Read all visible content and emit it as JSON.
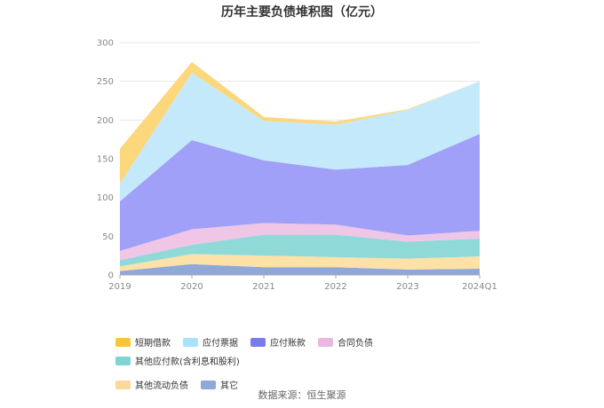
{
  "chart_data": {
    "type": "area",
    "stacked": true,
    "title": "历年主要负债堆积图（亿元）",
    "categories": [
      "2019",
      "2020",
      "2021",
      "2022",
      "2023",
      "2024Q1"
    ],
    "ylim": [
      0,
      300
    ],
    "yticks": [
      "0",
      "50",
      "100",
      "150",
      "200",
      "250",
      "300"
    ],
    "grid": true,
    "legend_position": "bottom",
    "series": [
      {
        "name": "其它",
        "color": "#8fa8d8",
        "values": [
          5,
          14,
          10,
          10,
          7,
          8
        ]
      },
      {
        "name": "其他流动负债",
        "color": "#fde1a6",
        "values": [
          6,
          13,
          15,
          13,
          14,
          16
        ]
      },
      {
        "name": "其他应付款(含利息和股利)",
        "color": "#8fd9d9",
        "values": [
          8,
          12,
          27,
          29,
          22,
          23
        ]
      },
      {
        "name": "合同负债",
        "color": "#efc6e6",
        "values": [
          12,
          20,
          15,
          13,
          8,
          10
        ]
      },
      {
        "name": "应付账款",
        "color": "#a0a0f8",
        "values": [
          64,
          115,
          81,
          71,
          91,
          125
        ]
      },
      {
        "name": "应付票据",
        "color": "#c4e9fb",
        "values": [
          23,
          87,
          51,
          58,
          71,
          68
        ]
      },
      {
        "name": "短期借款",
        "color": "#fdd77c",
        "values": [
          45,
          14,
          5,
          4,
          1,
          0
        ]
      }
    ]
  },
  "legend": {
    "rows": [
      [
        {
          "label": "短期借款",
          "color": "#fcc43c"
        },
        {
          "label": "应付票据",
          "color": "#a9e2fb"
        },
        {
          "label": "应付账款",
          "color": "#7b7bf0"
        },
        {
          "label": "合同负债",
          "color": "#eab7e0"
        },
        {
          "label": "其他应付款(含利息和股利)",
          "color": "#7fd4d4"
        }
      ],
      [
        {
          "label": "其他流动负债",
          "color": "#fdd89c"
        },
        {
          "label": "其它",
          "color": "#8fa8d8"
        }
      ]
    ]
  },
  "source": "数据来源：恒生聚源"
}
